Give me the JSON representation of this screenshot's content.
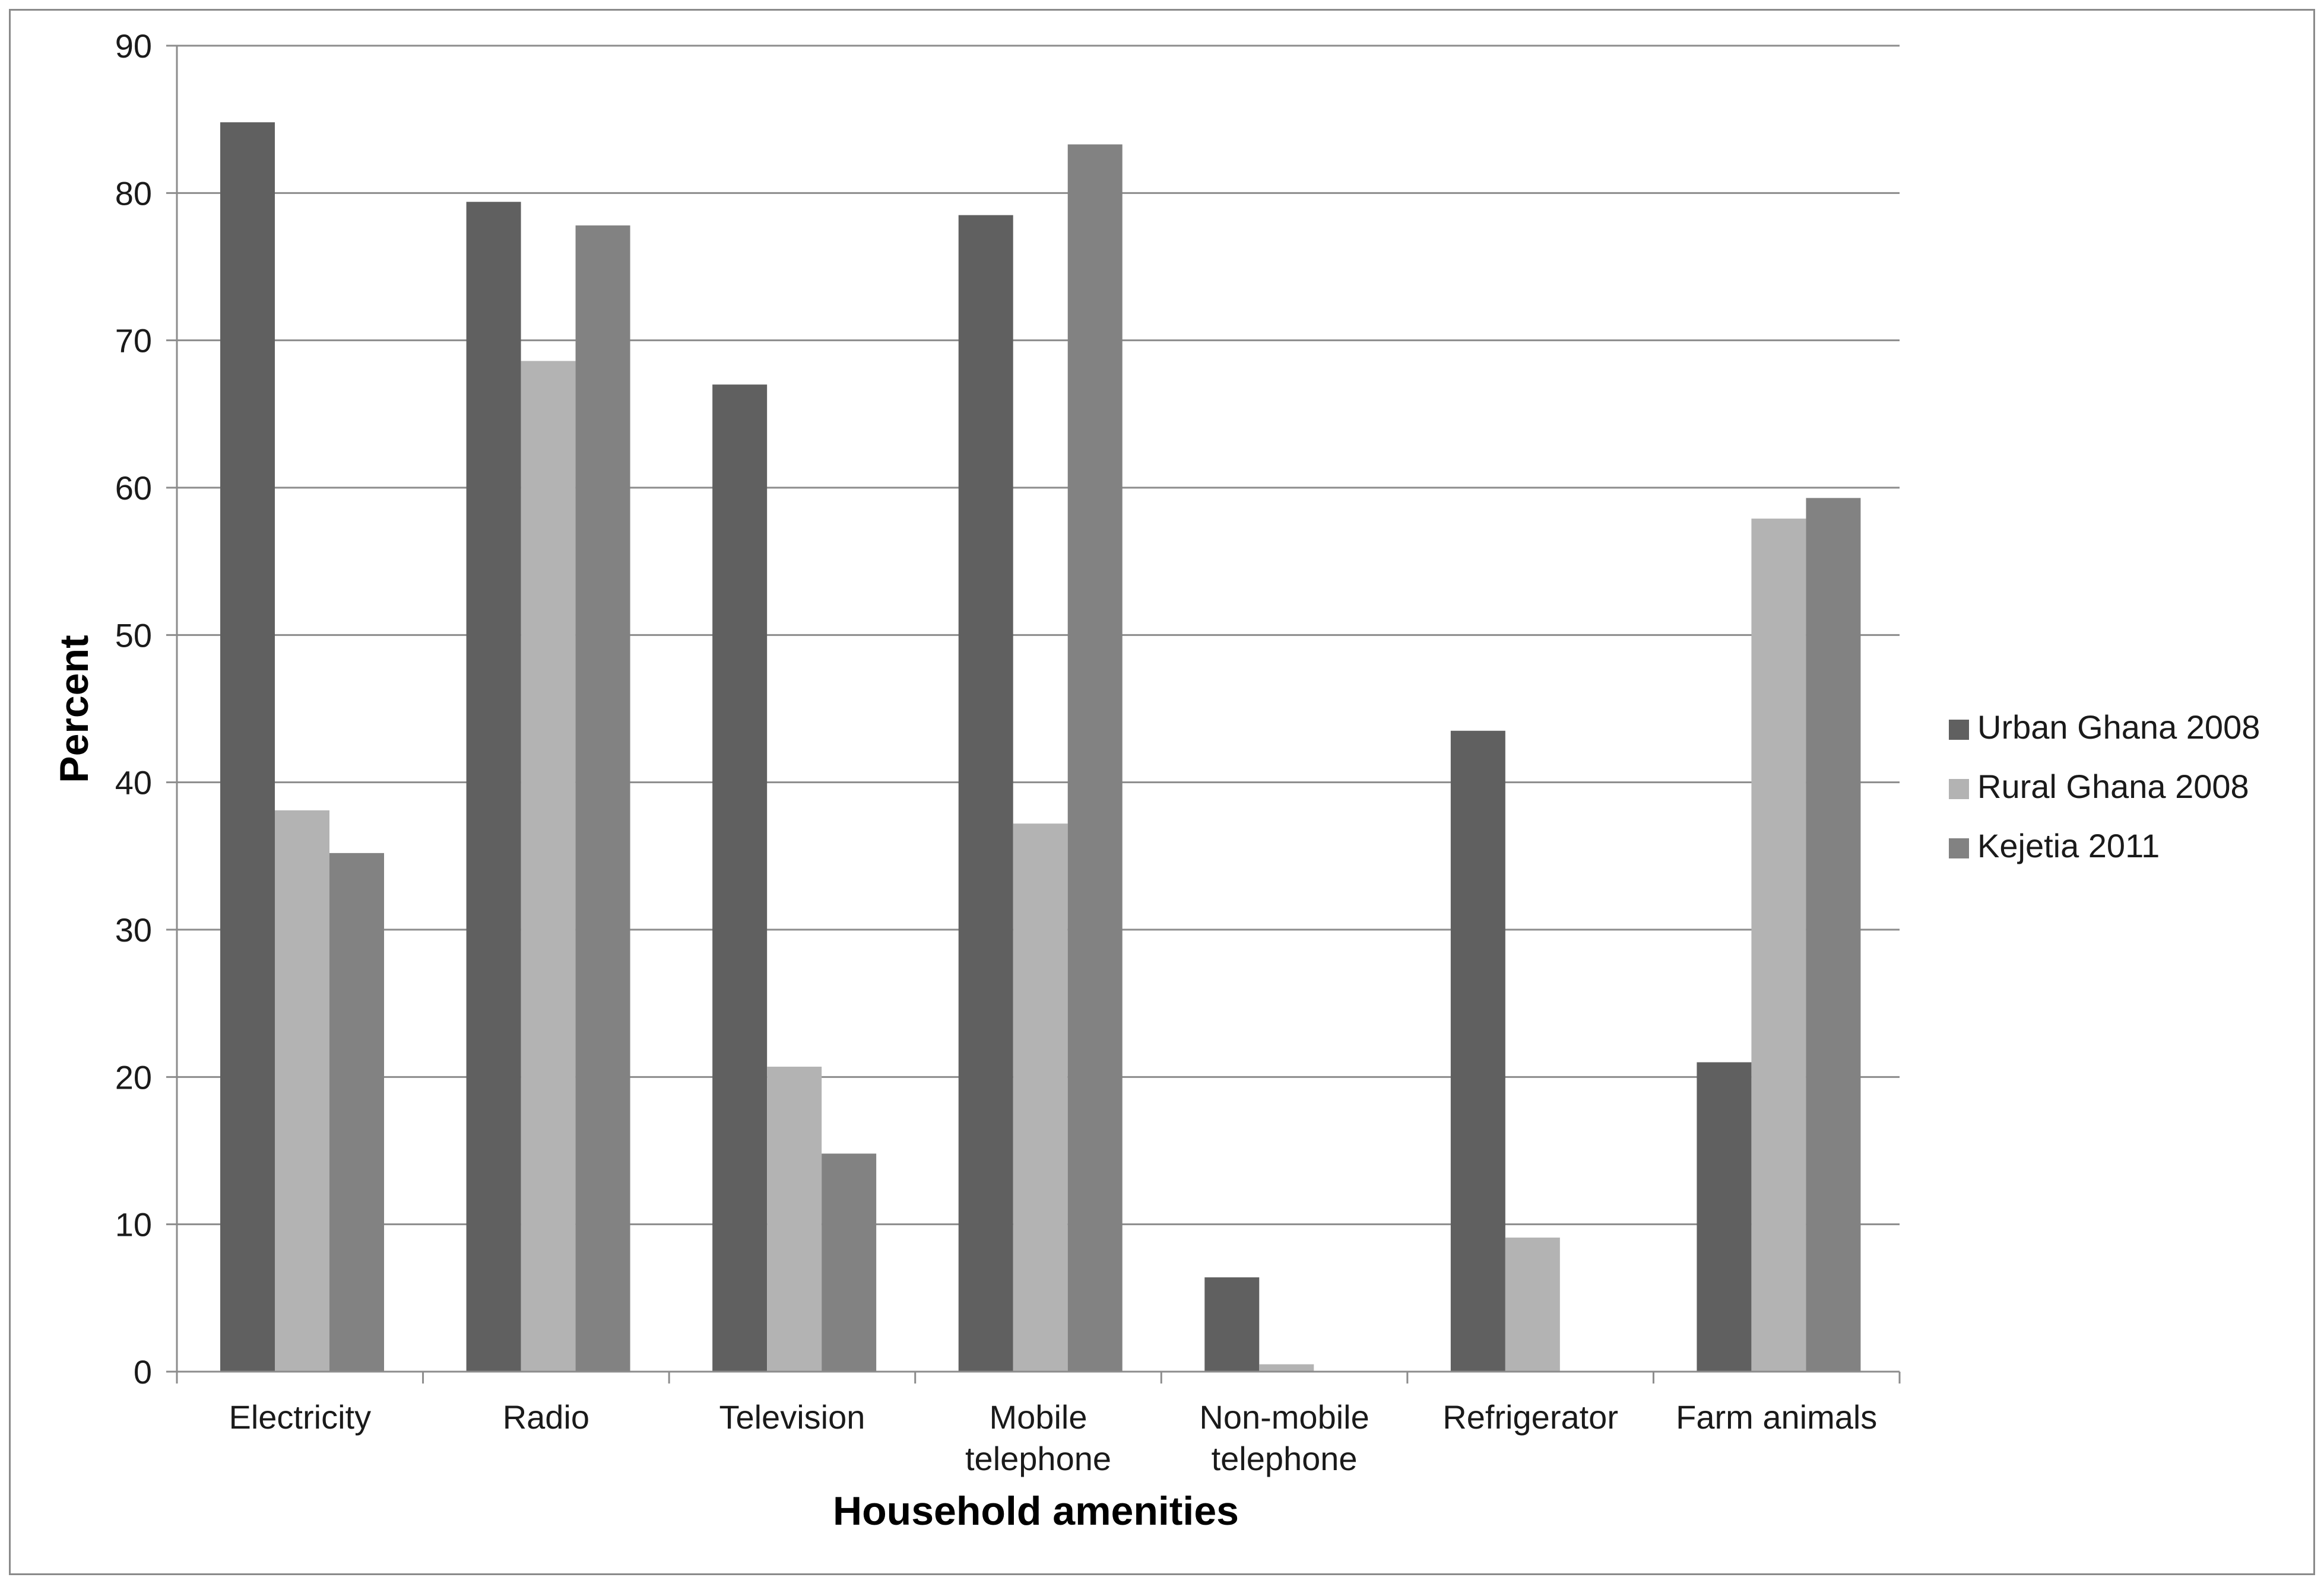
{
  "chart_data": {
    "type": "bar",
    "title": "",
    "xlabel": "Household amenities",
    "ylabel": "Percent",
    "ylim": [
      0,
      90
    ],
    "yticks": [
      0,
      10,
      20,
      30,
      40,
      50,
      60,
      70,
      80,
      90
    ],
    "grid": true,
    "legend_position": "right",
    "categories": [
      [
        "Electricity"
      ],
      [
        "Radio"
      ],
      [
        "Television"
      ],
      [
        "Mobile",
        "telephone"
      ],
      [
        "Non-mobile",
        "telephone"
      ],
      [
        "Refrigerator"
      ],
      [
        "Farm animals"
      ]
    ],
    "series": [
      {
        "name": "Urban Ghana 2008",
        "color": "#606060",
        "values": [
          84.8,
          79.4,
          67.0,
          78.5,
          6.4,
          43.5,
          21.0
        ]
      },
      {
        "name": "Rural Ghana 2008",
        "color": "#b3b3b3",
        "values": [
          38.1,
          68.6,
          20.7,
          37.2,
          0.5,
          9.1,
          57.9
        ]
      },
      {
        "name": "Kejetia 2011",
        "color": "#828282",
        "values": [
          35.2,
          77.8,
          14.8,
          83.3,
          0.0,
          0.0,
          59.3
        ]
      }
    ]
  }
}
